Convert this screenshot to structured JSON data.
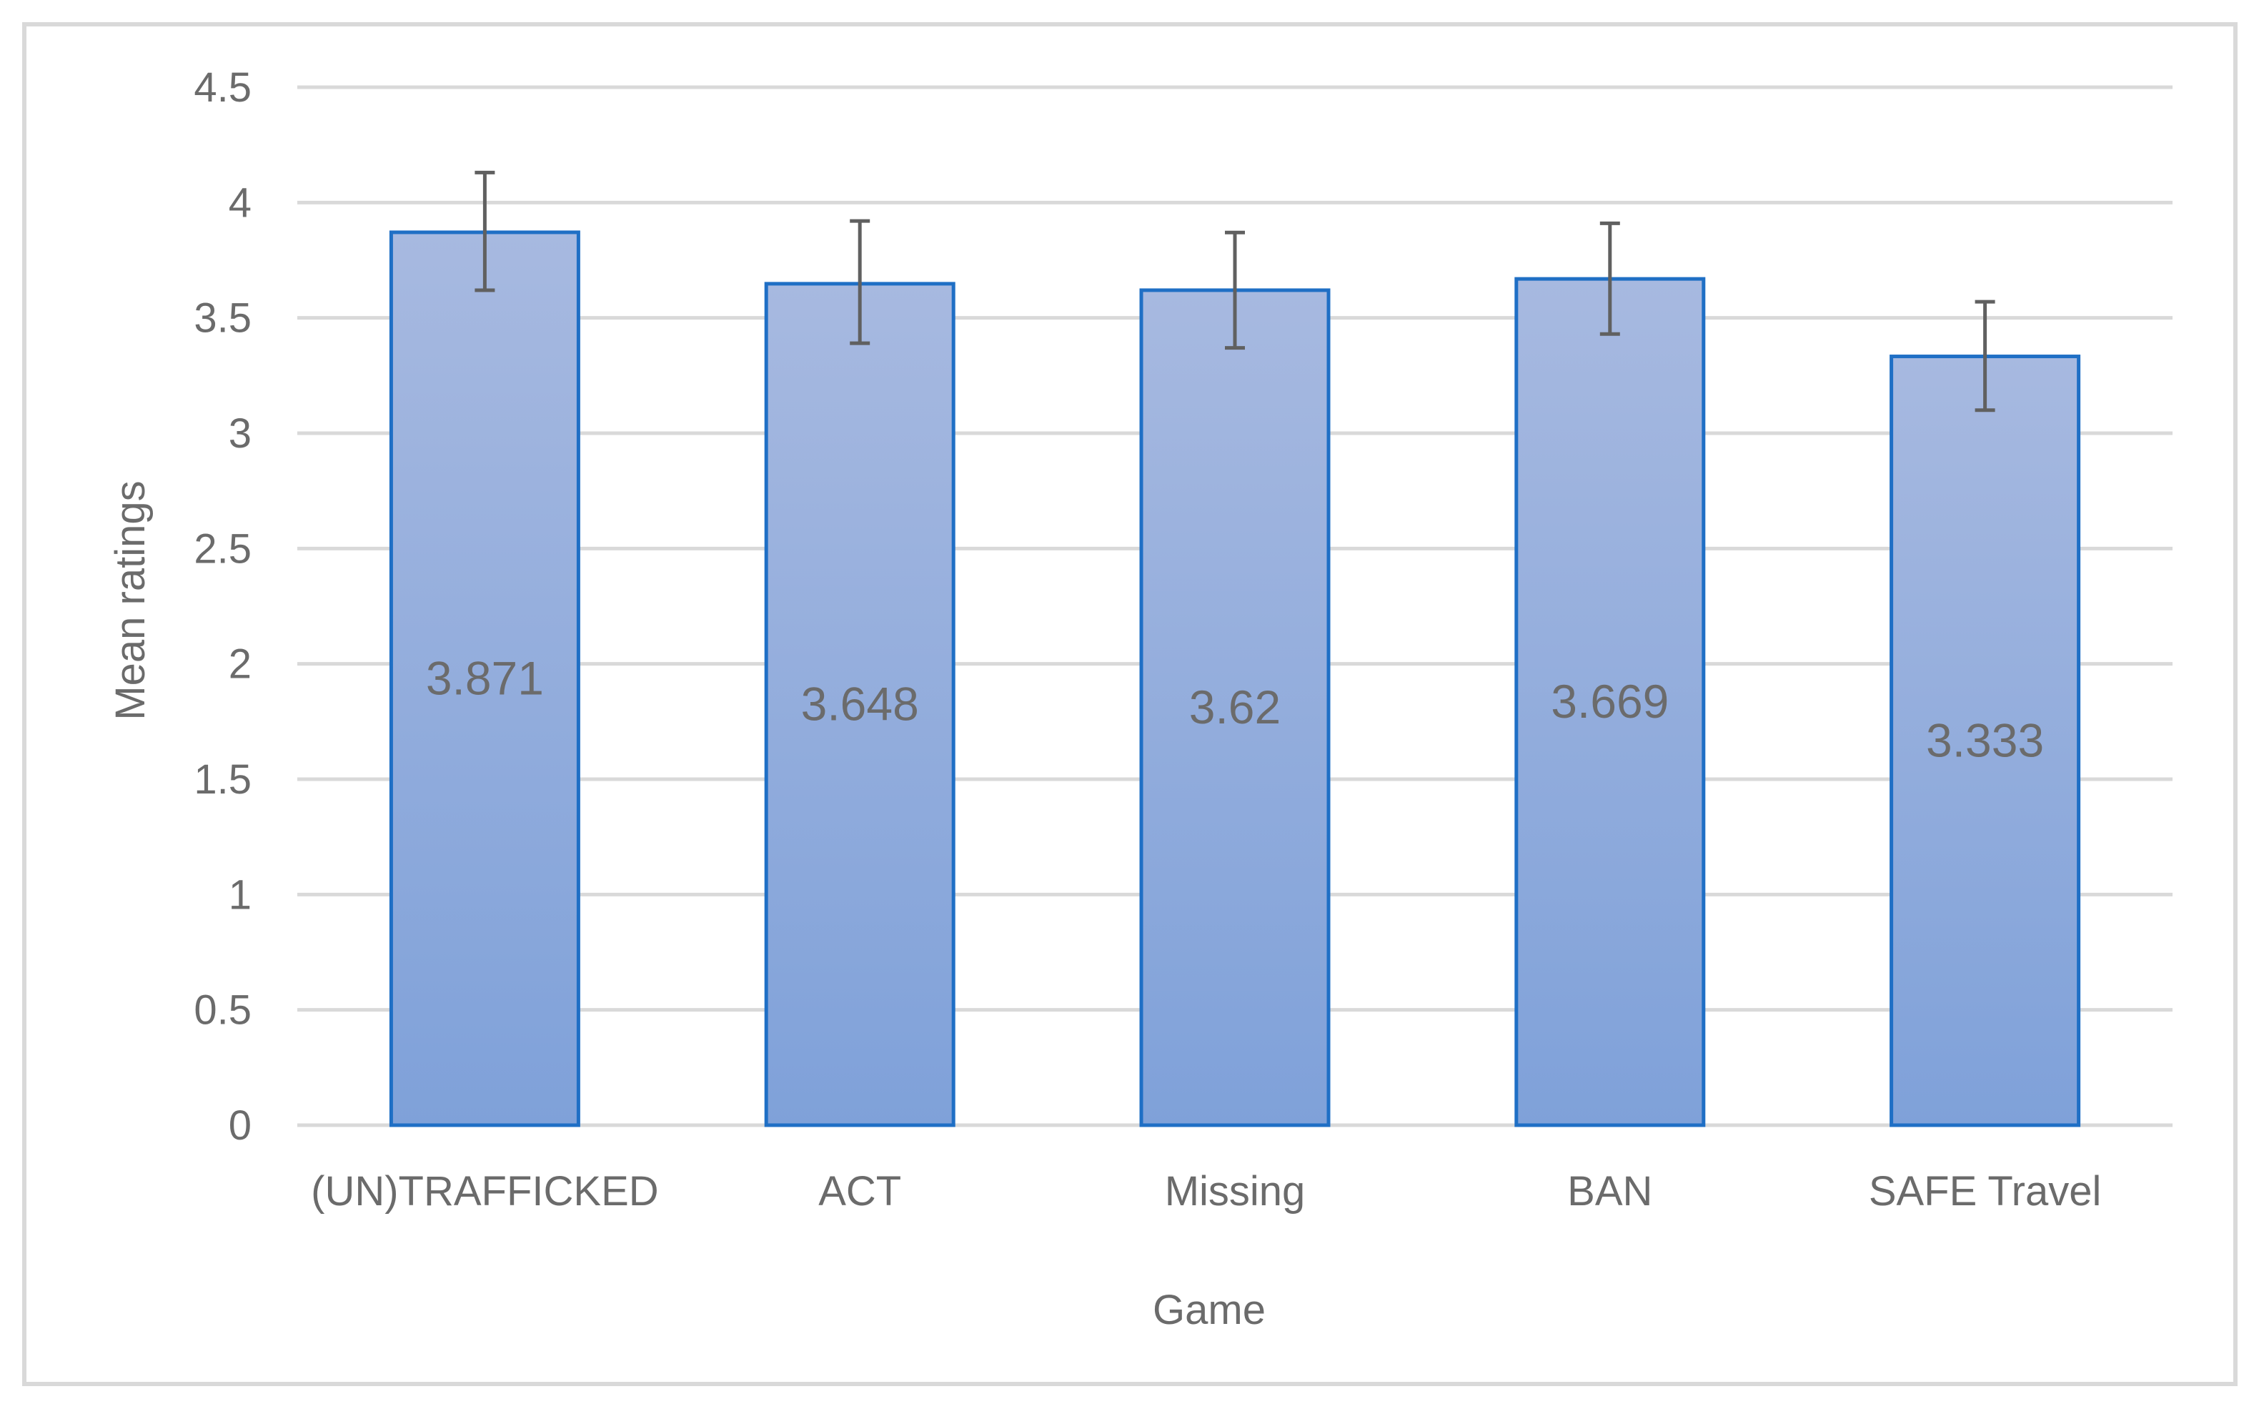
{
  "chart_data": {
    "type": "bar",
    "title": "",
    "xlabel": "Game",
    "ylabel": "Mean ratings",
    "categories": [
      "(UN)TRAFFICKED",
      "ACT",
      "Missing",
      "BAN",
      "SAFE Travel"
    ],
    "values": [
      3.871,
      3.648,
      3.62,
      3.669,
      3.333
    ],
    "value_labels": [
      "3.871",
      "3.648",
      "3.62",
      "3.669",
      "3.333"
    ],
    "error_bars": [
      {
        "low": 3.62,
        "high": 4.13
      },
      {
        "low": 3.39,
        "high": 3.92
      },
      {
        "low": 3.37,
        "high": 3.87
      },
      {
        "low": 3.43,
        "high": 3.91
      },
      {
        "low": 3.1,
        "high": 3.57
      }
    ],
    "ylim": [
      0,
      4.5
    ],
    "yticks": [
      0,
      0.5,
      1,
      1.5,
      2,
      2.5,
      3,
      3.5,
      4,
      4.5
    ],
    "ytick_labels": [
      "0",
      "0.5",
      "1",
      "1.5",
      "2",
      "2.5",
      "3",
      "3.5",
      "4",
      "4.5"
    ],
    "grid": true,
    "legend": "none",
    "colors": {
      "bar_fill_top": "#a7b9e0",
      "bar_fill_bottom": "#7fa1d9",
      "bar_stroke": "#1f6fc5",
      "gridline": "#d9d9d9",
      "text": "#6b6b6b",
      "error_bar": "#606060",
      "frame": "#d9d9d9"
    }
  }
}
